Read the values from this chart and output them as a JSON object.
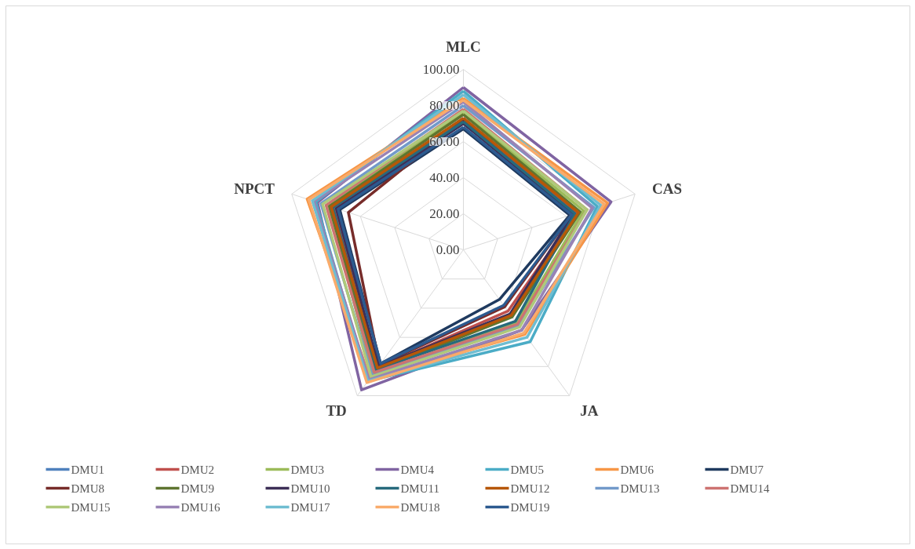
{
  "chart_data": {
    "type": "radar",
    "categories": [
      "MLC",
      "CAS",
      "JA",
      "TD",
      "NPCT"
    ],
    "ylim": [
      0,
      100
    ],
    "yticks": [
      {
        "value": 0,
        "label": "0.00"
      },
      {
        "value": 20,
        "label": "20.00"
      },
      {
        "value": 40,
        "label": "40.00"
      },
      {
        "value": 60,
        "label": "60.00"
      },
      {
        "value": 80,
        "label": "80.00"
      },
      {
        "value": 100,
        "label": "100.00"
      }
    ],
    "grid": true,
    "legend": "bottom",
    "series": [
      {
        "name": "DMU1",
        "color": "#4f81bd",
        "values": [
          70,
          65,
          45,
          82,
          76
        ]
      },
      {
        "name": "DMU2",
        "color": "#c0504d",
        "values": [
          73,
          66,
          42,
          81,
          75
        ]
      },
      {
        "name": "DMU3",
        "color": "#9bbb59",
        "values": [
          76,
          70,
          50,
          85,
          79
        ]
      },
      {
        "name": "DMU4",
        "color": "#8064a2",
        "values": [
          90,
          86,
          55,
          96,
          85
        ]
      },
      {
        "name": "DMU5",
        "color": "#4bacc6",
        "values": [
          88,
          78,
          63,
          90,
          86
        ]
      },
      {
        "name": "DMU6",
        "color": "#f79646",
        "values": [
          84,
          84,
          58,
          88,
          91
        ]
      },
      {
        "name": "DMU7",
        "color": "#1f3a5f",
        "values": [
          67,
          62,
          34,
          78,
          72
        ]
      },
      {
        "name": "DMU8",
        "color": "#772c2a",
        "values": [
          72,
          63,
          39,
          79,
          67
        ]
      },
      {
        "name": "DMU9",
        "color": "#5f7530",
        "values": [
          75,
          68,
          46,
          83,
          78
        ]
      },
      {
        "name": "DMU10",
        "color": "#3d2f57",
        "values": [
          70,
          64,
          44,
          80,
          74
        ]
      },
      {
        "name": "DMU11",
        "color": "#276a7c",
        "values": [
          71,
          65,
          49,
          82,
          76
        ]
      },
      {
        "name": "DMU12",
        "color": "#b65708",
        "values": [
          73,
          67,
          45,
          81,
          77
        ]
      },
      {
        "name": "DMU13",
        "color": "#729aca",
        "values": [
          80,
          76,
          52,
          86,
          83
        ]
      },
      {
        "name": "DMU14",
        "color": "#cd7371",
        "values": [
          78,
          72,
          51,
          84,
          80
        ]
      },
      {
        "name": "DMU15",
        "color": "#afc97a",
        "values": [
          77,
          72,
          53,
          87,
          82
        ]
      },
      {
        "name": "DMU16",
        "color": "#9983b5",
        "values": [
          82,
          75,
          55,
          89,
          87
        ]
      },
      {
        "name": "DMU17",
        "color": "#6fbdd1",
        "values": [
          86,
          80,
          60,
          90,
          88
        ]
      },
      {
        "name": "DMU18",
        "color": "#f9ab6b",
        "values": [
          83,
          82,
          57,
          91,
          90
        ]
      },
      {
        "name": "DMU19",
        "color": "#2c5a8f",
        "values": [
          68,
          63,
          38,
          78,
          73
        ]
      }
    ]
  }
}
